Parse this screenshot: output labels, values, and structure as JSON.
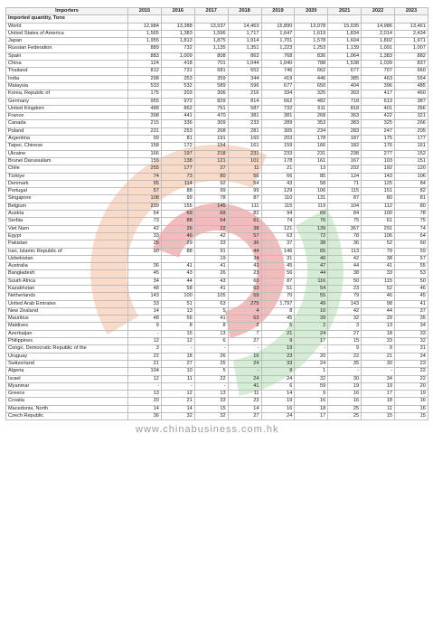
{
  "header": {
    "importers_label": "Importers",
    "subheader": "Imported quantity, Tons",
    "years": [
      "2015",
      "2016",
      "2017",
      "2018",
      "2019",
      "2020",
      "2021",
      "2022",
      "2023"
    ]
  },
  "watermark": {
    "text": "www.chinabusiness.com.hk"
  },
  "colors": {
    "grid": "#bdbdbd",
    "watermark_orange": "#f0a070",
    "watermark_green": "#8fd08f",
    "watermark_red": "#e05050"
  },
  "rows": [
    {
      "name": "World",
      "values": [
        "12,984",
        "13,388",
        "13,537",
        "14,463",
        "15,890",
        "13,078",
        "15,035",
        "14,986",
        "13,461"
      ]
    },
    {
      "name": "United States of America",
      "values": [
        "1,565",
        "1,383",
        "1,596",
        "1,717",
        "1,647",
        "1,619",
        "1,834",
        "2,014",
        "2,434"
      ]
    },
    {
      "name": "Japan",
      "values": [
        "1,955",
        "1,813",
        "1,875",
        "1,914",
        "1,701",
        "1,578",
        "1,604",
        "1,802",
        "1,971"
      ]
    },
    {
      "name": "Russian Federation",
      "values": [
        "889",
        "732",
        "1,135",
        "1,351",
        "1,223",
        "1,253",
        "1,139",
        "1,091",
        "1,007"
      ]
    },
    {
      "name": "Spain",
      "values": [
        "883",
        "1,009",
        "808",
        "863",
        "768",
        "836",
        "1,064",
        "1,383",
        "882"
      ]
    },
    {
      "name": "China",
      "values": [
        "124",
        "418",
        "701",
        "1,044",
        "1,040",
        "788",
        "1,538",
        "1,039",
        "837"
      ]
    },
    {
      "name": "Thailand",
      "values": [
        "812",
        "731",
        "681",
        "652",
        "746",
        "662",
        "677",
        "707",
        "660"
      ]
    },
    {
      "name": "India",
      "values": [
        "298",
        "353",
        "359",
        "344",
        "419",
        "446",
        "385",
        "463",
        "554"
      ]
    },
    {
      "name": "Malaysia",
      "values": [
        "533",
        "532",
        "589",
        "596",
        "677",
        "650",
        "404",
        "396",
        "485"
      ]
    },
    {
      "name": "Korea, Republic of",
      "values": [
        "175",
        "203",
        "306",
        "216",
        "334",
        "325",
        "303",
        "417",
        "460"
      ]
    },
    {
      "name": "Germany",
      "values": [
        "955",
        "972",
        "829",
        "814",
        "662",
        "482",
        "718",
        "613",
        "387"
      ]
    },
    {
      "name": "United Kingdom",
      "values": [
        "488",
        "862",
        "751",
        "587",
        "732",
        "611",
        "818",
        "401",
        "356"
      ]
    },
    {
      "name": "France",
      "values": [
        "398",
        "441",
        "470",
        "381",
        "381",
        "268",
        "363",
        "422",
        "321"
      ]
    },
    {
      "name": "Canada",
      "values": [
        "215",
        "336",
        "309",
        "233",
        "289",
        "353",
        "383",
        "325",
        "266"
      ]
    },
    {
      "name": "Poland",
      "values": [
        "231",
        "253",
        "268",
        "281",
        "305",
        "234",
        "283",
        "247",
        "205"
      ]
    },
    {
      "name": "Argentina",
      "values": [
        "99",
        "81",
        "191",
        "160",
        "203",
        "178",
        "187",
        "175",
        "177"
      ]
    },
    {
      "name": "Taipei, Chinese",
      "values": [
        "158",
        "172",
        "154",
        "161",
        "159",
        "166",
        "182",
        "176",
        "161"
      ]
    },
    {
      "name": "Ukraine",
      "values": [
        "166",
        "197",
        "218",
        "231",
        "233",
        "231",
        "238",
        "277",
        "152"
      ]
    },
    {
      "name": "Brunei Darussalam",
      "values": [
        "155",
        "138",
        "121",
        "101",
        "178",
        "161",
        "167",
        "103",
        "151"
      ]
    },
    {
      "name": "Chile",
      "values": [
        "255",
        "177",
        "27",
        "11",
        "21",
        "13",
        "202",
        "192",
        "120"
      ]
    },
    {
      "name": "Türkiye",
      "values": [
        "74",
        "73",
        "80",
        "56",
        "66",
        "85",
        "124",
        "143",
        "106"
      ]
    },
    {
      "name": "Denmark",
      "values": [
        "95",
        "114",
        "92",
        "54",
        "43",
        "58",
        "71",
        "125",
        "84"
      ]
    },
    {
      "name": "Portugal",
      "values": [
        "57",
        "88",
        "99",
        "99",
        "129",
        "106",
        "115",
        "151",
        "82"
      ]
    },
    {
      "name": "Singapore",
      "values": [
        "108",
        "99",
        "78",
        "87",
        "110",
        "131",
        "87",
        "80",
        "81"
      ]
    },
    {
      "name": "Belgium",
      "values": [
        "239",
        "155",
        "145",
        "111",
        "115",
        "119",
        "104",
        "112",
        "80"
      ]
    },
    {
      "name": "Austria",
      "values": [
        "64",
        "69",
        "69",
        "82",
        "94",
        "69",
        "84",
        "100",
        "78"
      ]
    },
    {
      "name": "Serbia",
      "values": [
        "73",
        "88",
        "64",
        "61",
        "74",
        "76",
        "75",
        "61",
        "75"
      ]
    },
    {
      "name": "Viet Nam",
      "values": [
        "42",
        "26",
        "22",
        "38",
        "121",
        "139",
        "367",
        "291",
        "74"
      ]
    },
    {
      "name": "Egypt",
      "values": [
        "33",
        "46",
        "42",
        "57",
        "63",
        "72",
        "78",
        "106",
        "64"
      ]
    },
    {
      "name": "Pakistan",
      "values": [
        "25",
        "29",
        "33",
        "36",
        "37",
        "38",
        "36",
        "52",
        "60"
      ]
    },
    {
      "name": "Iran, Islamic Republic of",
      "values": [
        "90",
        "88",
        "91",
        "44",
        "146",
        "65",
        "113",
        "79",
        "59"
      ]
    },
    {
      "name": "Uzbekistan",
      "values": [
        "",
        "",
        "19",
        "34",
        "31",
        "40",
        "42",
        "38",
        "57"
      ]
    },
    {
      "name": "Australia",
      "values": [
        "36",
        "41",
        "41",
        "42",
        "45",
        "47",
        "44",
        "41",
        "55"
      ]
    },
    {
      "name": "Bangladesh",
      "values": [
        "45",
        "43",
        "26",
        "23",
        "56",
        "44",
        "38",
        "33",
        "53"
      ]
    },
    {
      "name": "South Africa",
      "values": [
        "34",
        "44",
        "43",
        "60",
        "87",
        "116",
        "50",
        "115",
        "50"
      ]
    },
    {
      "name": "Kazakhstan",
      "values": [
        "48",
        "58",
        "41",
        "63",
        "51",
        "54",
        "23",
        "52",
        "46"
      ]
    },
    {
      "name": "Netherlands",
      "values": [
        "143",
        "100",
        "105",
        "59",
        "70",
        "55",
        "79",
        "46",
        "45"
      ]
    },
    {
      "name": "United Arab Emirates",
      "values": [
        "33",
        "51",
        "63",
        "275",
        "1,797",
        "49",
        "143",
        "98",
        "41"
      ]
    },
    {
      "name": "New Zealand",
      "values": [
        "14",
        "13",
        "5",
        "4",
        "8",
        "10",
        "42",
        "44",
        "37"
      ]
    },
    {
      "name": "Mauritius",
      "values": [
        "48",
        "56",
        "41",
        "63",
        "45",
        "39",
        "32",
        "29",
        "35"
      ]
    },
    {
      "name": "Maldives",
      "values": [
        "9",
        "8",
        "8",
        "2",
        "5",
        "2",
        "3",
        "13",
        "34"
      ]
    },
    {
      "name": "Azerbaijan",
      "values": [
        "-",
        "15",
        "13",
        "7",
        "21",
        "24",
        "27",
        "18",
        "33"
      ]
    },
    {
      "name": "Philippines",
      "values": [
        "12",
        "12",
        "6",
        "27",
        "9",
        "17",
        "15",
        "33",
        "32"
      ]
    },
    {
      "name": "Congo, Democratic Republic of the",
      "values": [
        "3",
        "-",
        "-",
        "-",
        "19",
        "-",
        "9",
        "9",
        "31"
      ]
    },
    {
      "name": "Uruguay",
      "values": [
        "22",
        "18",
        "26",
        "16",
        "23",
        "20",
        "22",
        "21",
        "24"
      ]
    },
    {
      "name": "Switzerland",
      "values": [
        "21",
        "27",
        "25",
        "24",
        "33",
        "24",
        "35",
        "30",
        "23"
      ]
    },
    {
      "name": "Algeria",
      "values": [
        "104",
        "10",
        "5",
        "-",
        "9",
        "1",
        "-",
        "-",
        "22"
      ]
    },
    {
      "name": "Israel",
      "values": [
        "12",
        "11",
        "22",
        "24",
        "24",
        "32",
        "30",
        "34",
        "22"
      ]
    },
    {
      "name": "Myanmar",
      "values": [
        "-",
        "-",
        "-",
        "41",
        "6",
        "59",
        "19",
        "19",
        "20"
      ]
    },
    {
      "name": "Greece",
      "values": [
        "13",
        "12",
        "13",
        "11",
        "14",
        "9",
        "16",
        "17",
        "19"
      ]
    },
    {
      "name": "Croatia",
      "values": [
        "20",
        "21",
        "33",
        "23",
        "19",
        "16",
        "16",
        "18",
        "16"
      ]
    },
    {
      "name": "Macedonia, North",
      "values": [
        "14",
        "14",
        "15",
        "14",
        "16",
        "18",
        "25",
        "11",
        "16"
      ]
    },
    {
      "name": "Czech Republic",
      "values": [
        "36",
        "32",
        "32",
        "27",
        "24",
        "17",
        "25",
        "15",
        "15"
      ]
    }
  ]
}
